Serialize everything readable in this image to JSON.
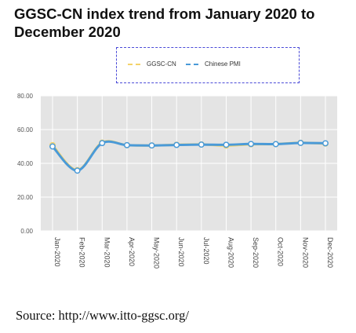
{
  "title": "GGSC-CN index trend from January 2020 to December 2020",
  "source": "Source: http://www.itto-ggsc.org/",
  "colors": {
    "ggsc": "#f4d36a",
    "pmi": "#4a9ad8",
    "plot_bg": "#e4e4e4",
    "grid": "#ffffff"
  },
  "chart_data": {
    "type": "line",
    "categories": [
      "Jan-2020",
      "Feb-2020",
      "Mar-2020",
      "Apr-2020",
      "May-2020",
      "Jun-2020",
      "Jul-2020",
      "Aug-2020",
      "Sep-2020",
      "Oct-2020",
      "Nov-2020",
      "Dec-2020"
    ],
    "series": [
      {
        "name": "GGSC-CN",
        "values": [
          50.8,
          36.0,
          52.3,
          50.8,
          50.6,
          51.0,
          51.2,
          50.5,
          51.3,
          51.4,
          52.2,
          51.7
        ]
      },
      {
        "name": "Chinese PMI",
        "values": [
          50.0,
          35.7,
          52.0,
          50.8,
          50.6,
          50.9,
          51.1,
          51.0,
          51.5,
          51.4,
          52.1,
          51.9
        ]
      }
    ],
    "ylim": [
      0,
      80
    ],
    "yticks": [
      "0.00",
      "20.00",
      "40.00",
      "60.00",
      "80.00"
    ],
    "xlabel": "",
    "ylabel": "",
    "grid": true,
    "legend": "top-center"
  }
}
